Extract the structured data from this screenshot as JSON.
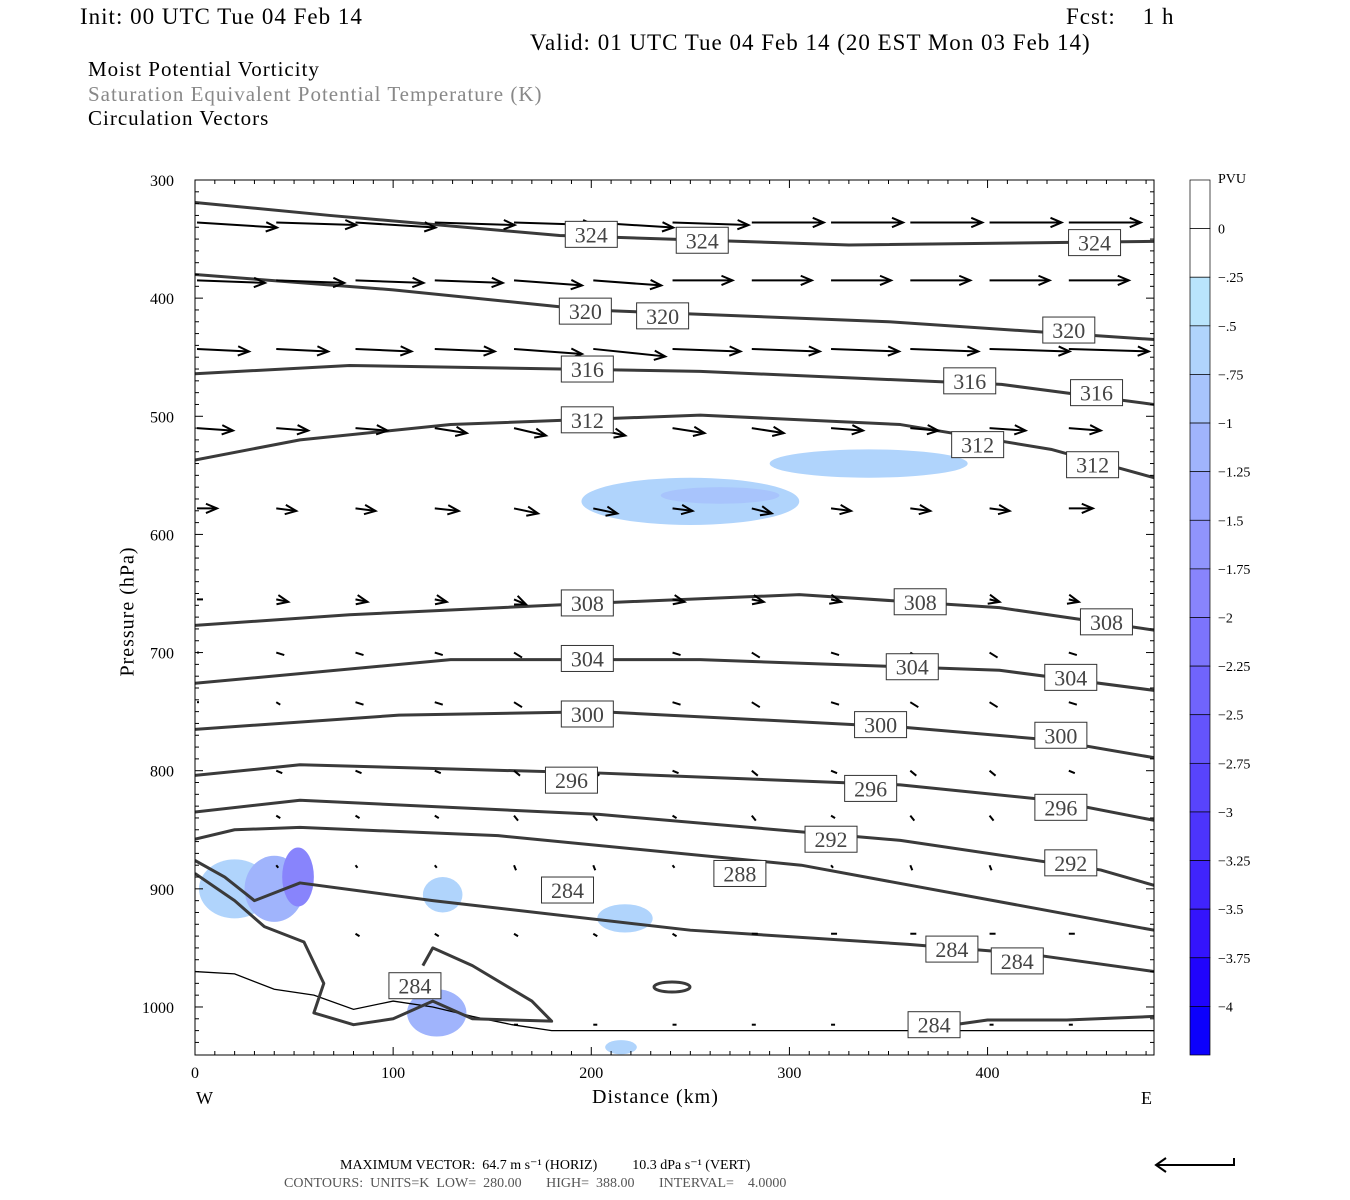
{
  "header": {
    "init": "Init: 00 UTC Tue 04 Feb 14",
    "fcst": "Fcst:    1 h",
    "valid": "Valid: 01 UTC Tue 04 Feb 14 (20 EST Mon 03 Feb 14)"
  },
  "fields": [
    "Moist Potential Vorticity",
    "Saturation Equivalent Potential Temperature (K)",
    "Circulation Vectors"
  ],
  "footer": {
    "max_vector": "MAXIMUM VECTOR:  64.7 m s⁻¹ (HORIZ)          10.3 dPa s⁻¹ (VERT)",
    "contours": "CONTOURS:  UNITS=K  LOW=  280.00       HIGH=  388.00       INTERVAL=    4.0000"
  },
  "chart_data": {
    "type": "cross-section",
    "xlabel": "Distance (km)",
    "ylabel": "Pressure (hPa)",
    "xlim": [
      0,
      484
    ],
    "ylim": [
      1040,
      300
    ],
    "xticks": [
      0,
      100,
      200,
      300,
      400
    ],
    "yticks": [
      300,
      400,
      500,
      600,
      700,
      800,
      900,
      1000
    ],
    "west_label": "W",
    "east_label": "E",
    "colorbar": {
      "title": "PVU",
      "labels": [
        "0",
        "-.25",
        "-.5",
        "-.75",
        "-1",
        "-1.25",
        "-1.5",
        "-1.75",
        "-2",
        "-2.25",
        "-2.5",
        "-2.75",
        "-3",
        "-3.25",
        "-3.5",
        "-3.75",
        "-4"
      ],
      "colors": [
        "#ffffff",
        "#ffffff",
        "#b9e4fc",
        "#b0d4fc",
        "#a8c4fc",
        "#a0b4fc",
        "#98a4fc",
        "#9094fc",
        "#8884fc",
        "#7c74fc",
        "#7064fc",
        "#6454fc",
        "#5844fc",
        "#4c34fc",
        "#4024fc",
        "#3414fc",
        "#2004fc",
        "#0c00fc"
      ]
    },
    "contours": [
      {
        "value": 324,
        "km": [
          0,
          68,
          184,
          330,
          484
        ],
        "p": [
          319,
          330,
          347,
          355,
          352
        ],
        "labels": [
          [
            200,
            346
          ],
          [
            256,
            351
          ],
          [
            454,
            353
          ]
        ]
      },
      {
        "value": 320,
        "km": [
          0,
          100,
          200,
          350,
          484
        ],
        "p": [
          380,
          393,
          410,
          420,
          435
        ],
        "labels": [
          [
            197,
            411
          ],
          [
            236,
            415
          ],
          [
            441,
            427
          ]
        ]
      },
      {
        "value": 316,
        "km": [
          0,
          78,
          255,
          407,
          484
        ],
        "p": [
          464,
          457,
          462,
          473,
          490
        ],
        "labels": [
          [
            198,
            460
          ],
          [
            391,
            470
          ],
          [
            455,
            480
          ]
        ]
      },
      {
        "value": 312,
        "km": [
          0,
          53,
          129,
          255,
          356,
          432,
          484
        ],
        "p": [
          537,
          520,
          507,
          499,
          507,
          528,
          552
        ],
        "labels": [
          [
            198,
            503
          ],
          [
            395,
            524
          ],
          [
            453,
            541
          ]
        ]
      },
      {
        "value": 308,
        "km": [
          0,
          78,
          204,
          305,
          406,
          484
        ],
        "p": [
          677,
          668,
          658,
          651,
          662,
          681
        ],
        "labels": [
          [
            198,
            658
          ],
          [
            366,
            657
          ],
          [
            460,
            674
          ]
        ]
      },
      {
        "value": 304,
        "km": [
          0,
          129,
          255,
          406,
          484
        ],
        "p": [
          726,
          706,
          706,
          715,
          732
        ],
        "labels": [
          [
            198,
            705
          ],
          [
            362,
            712
          ],
          [
            442,
            721
          ]
        ]
      },
      {
        "value": 300,
        "km": [
          0,
          103,
          204,
          356,
          432,
          484
        ],
        "p": [
          765,
          753,
          750,
          763,
          774,
          789
        ],
        "labels": [
          [
            198,
            752
          ],
          [
            346,
            761
          ],
          [
            437,
            770
          ]
        ]
      },
      {
        "value": 296,
        "km": [
          0,
          53,
          204,
          356,
          432,
          484
        ],
        "p": [
          804,
          795,
          802,
          812,
          825,
          842
        ],
        "labels": [
          [
            190,
            808
          ],
          [
            341,
            815
          ],
          [
            437,
            831
          ]
        ]
      },
      {
        "value": 292,
        "km": [
          0,
          53,
          204,
          356,
          457,
          484
        ],
        "p": [
          835,
          825,
          837,
          859,
          884,
          897
        ],
        "labels": [
          [
            321,
            858
          ],
          [
            442,
            878
          ]
        ]
      },
      {
        "value": 288,
        "km": [
          0,
          20,
          53,
          153,
          306,
          484
        ],
        "p": [
          858,
          850,
          848,
          855,
          880,
          935
        ],
        "labels": [
          [
            275,
            887
          ]
        ]
      },
      {
        "value": 284,
        "km": [
          0,
          15,
          30,
          53,
          120,
          250,
          360,
          420,
          484
        ],
        "p": [
          876,
          890,
          910,
          895,
          910,
          935,
          947,
          955,
          970
        ],
        "labels": [
          [
            188,
            901
          ],
          [
            382,
            951
          ],
          [
            415,
            961
          ]
        ]
      },
      {
        "value": 284,
        "km": [
          0,
          20,
          35,
          55,
          65,
          60,
          80,
          100,
          120,
          140,
          180,
          170,
          140,
          120,
          115
        ],
        "p": [
          887,
          910,
          932,
          945,
          980,
          1005,
          1015,
          1010,
          995,
          1010,
          1012,
          995,
          965,
          950,
          965
        ],
        "labels": [
          [
            111,
            982
          ]
        ]
      },
      {
        "value": 284,
        "km": [
          362,
          400,
          440,
          484
        ],
        "p": [
          1020,
          1011,
          1011,
          1008
        ],
        "labels": [
          [
            373,
            1015
          ]
        ]
      }
    ],
    "terrain": {
      "km": [
        0,
        20,
        40,
        60,
        80,
        100,
        120,
        140,
        160,
        180,
        200,
        250,
        300,
        350,
        400,
        484
      ],
      "p": [
        970,
        972,
        985,
        990,
        1002,
        995,
        1000,
        1008,
        1015,
        1020,
        1020,
        1020,
        1020,
        1020,
        1020,
        1020
      ]
    },
    "pv_regions": [
      {
        "value": -0.5,
        "km": 250,
        "p": 572,
        "rkm": 55,
        "rp": 20
      },
      {
        "value": -0.75,
        "km": 265,
        "p": 567,
        "rkm": 30,
        "rp": 7
      },
      {
        "value": -0.5,
        "km": 340,
        "p": 540,
        "rkm": 50,
        "rp": 12
      },
      {
        "value": -0.5,
        "km": 20,
        "p": 900,
        "rkm": 18,
        "rp": 25
      },
      {
        "value": -1,
        "km": 40,
        "p": 900,
        "rkm": 15,
        "rp": 28
      },
      {
        "value": -1.75,
        "km": 52,
        "p": 890,
        "rkm": 8,
        "rp": 25
      },
      {
        "value": -0.5,
        "km": 125,
        "p": 905,
        "rkm": 10,
        "rp": 15
      },
      {
        "value": -0.5,
        "km": 217,
        "p": 925,
        "rkm": 14,
        "rp": 12
      },
      {
        "value": -1,
        "km": 122,
        "p": 1005,
        "rkm": 15,
        "rp": 20
      },
      {
        "value": -0.5,
        "km": 215,
        "p": 1034,
        "rkm": 8,
        "rp": 6
      }
    ],
    "vectors": {
      "km": [
        0,
        40,
        80,
        120,
        160,
        200,
        240,
        280,
        320,
        360,
        400,
        440
      ],
      "rows": [
        {
          "p": 336,
          "u": [
            40,
            40,
            40,
            40,
            40,
            40,
            38,
            36,
            36,
            36,
            36,
            36
          ],
          "w": [
            -2,
            -1,
            -2,
            -1,
            -1,
            -2,
            -1,
            0,
            0,
            0,
            0,
            0
          ]
        },
        {
          "p": 385,
          "u": [
            34,
            34,
            34,
            34,
            34,
            34,
            30,
            30,
            30,
            30,
            30,
            30
          ],
          "w": [
            -1,
            -1,
            -1,
            -1,
            -2,
            -2,
            0,
            0,
            0,
            0,
            0,
            0
          ]
        },
        {
          "p": 443,
          "u": [
            26,
            26,
            28,
            30,
            34,
            36,
            34,
            34,
            34,
            34,
            40,
            40
          ],
          "w": [
            -1,
            -1,
            -1,
            -1,
            -2,
            -3,
            -1,
            -1,
            -1,
            -1,
            -1,
            -1
          ]
        },
        {
          "p": 510,
          "u": [
            18,
            16,
            16,
            16,
            16,
            16,
            16,
            16,
            16,
            14,
            18,
            16
          ],
          "w": [
            -1,
            -1,
            -1,
            -2,
            -3,
            -3,
            -2,
            -2,
            -1,
            -1,
            -1,
            -1
          ]
        },
        {
          "p": 578,
          "u": [
            10,
            10,
            10,
            12,
            12,
            12,
            10,
            10,
            10,
            10,
            10,
            12
          ],
          "w": [
            0,
            -1,
            -1,
            -1,
            -2,
            -2,
            -1,
            -2,
            -1,
            -1,
            -1,
            0
          ]
        },
        {
          "p": 655,
          "u": [
            3,
            6,
            6,
            6,
            6,
            6,
            6,
            6,
            5,
            5,
            5,
            5
          ],
          "w": [
            0,
            -1,
            -1,
            -1,
            -2,
            -2,
            -1,
            -1,
            -1,
            -1,
            -1,
            -1
          ]
        },
        {
          "p": 700,
          "u": [
            1,
            4,
            4,
            4,
            4,
            4,
            4,
            4,
            4,
            4,
            4,
            4
          ],
          "w": [
            0,
            -1,
            -1,
            -1,
            -2,
            -2,
            -1,
            -2,
            -1,
            -2,
            -2,
            -1
          ]
        },
        {
          "p": 742,
          "u": [
            1,
            2,
            4,
            4,
            4,
            4,
            4,
            4,
            4,
            4,
            4,
            4
          ],
          "w": [
            0,
            -1,
            -1,
            -1,
            -2,
            -2,
            -1,
            -2,
            -1,
            -2,
            -2,
            -1
          ]
        },
        {
          "p": 800,
          "u": [
            0,
            3,
            3,
            3,
            3,
            3,
            3,
            3,
            3,
            3,
            3,
            3
          ],
          "w": [
            0,
            -1,
            -1,
            -1,
            -2,
            -2,
            -1,
            -2,
            -1,
            -2,
            -2,
            -1
          ]
        },
        {
          "p": 838,
          "u": [
            0,
            2,
            2,
            2,
            2,
            2,
            2,
            2,
            2,
            2,
            2,
            2
          ],
          "w": [
            0,
            -1,
            -1,
            -1,
            -2,
            -2,
            -1,
            -2,
            -1,
            -2,
            -2,
            -1
          ]
        },
        {
          "p": 880,
          "u": [
            0,
            1,
            1,
            1,
            1,
            1,
            1,
            1,
            1,
            1,
            1,
            1
          ],
          "w": [
            0,
            -1,
            -1,
            -1,
            -2,
            -2,
            -1,
            -2,
            -1,
            -2,
            -2,
            -1
          ]
        },
        {
          "p": 938,
          "u": [
            0,
            0,
            2,
            2,
            2,
            2,
            2,
            3,
            3,
            3,
            3,
            3
          ],
          "w": [
            0,
            0,
            -1,
            -1,
            -1,
            -1,
            -1,
            0,
            0,
            0,
            0,
            0
          ]
        },
        {
          "p": 1015,
          "u": [
            0,
            0,
            0,
            0,
            2,
            2,
            2,
            2,
            2,
            2,
            2,
            2
          ],
          "w": [
            0,
            0,
            0,
            0,
            0,
            0,
            0,
            0,
            0,
            0,
            0,
            0
          ]
        }
      ]
    }
  }
}
